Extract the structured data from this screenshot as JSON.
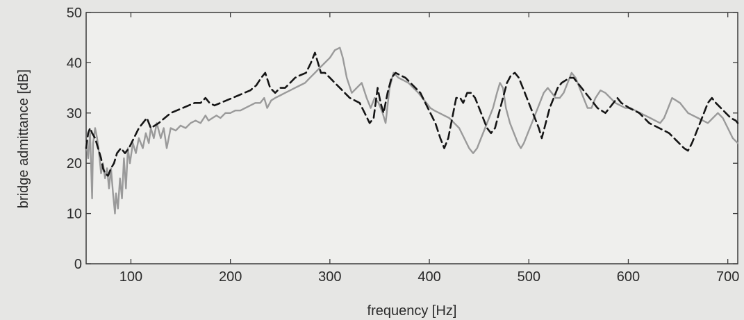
{
  "chart_data": {
    "type": "line",
    "title": "",
    "xlabel": "frequency [Hz]",
    "ylabel": "bridge admittance [dB]",
    "xlim": [
      55,
      710
    ],
    "ylim": [
      0,
      50
    ],
    "xticks": [
      100,
      200,
      300,
      400,
      500,
      600,
      700
    ],
    "yticks": [
      0,
      10,
      20,
      30,
      40,
      50
    ],
    "xtick_labels": [
      "100",
      "200",
      "300",
      "400",
      "500",
      "600",
      "700"
    ],
    "ytick_labels": [
      "0",
      "10",
      "20",
      "30",
      "40",
      "50"
    ],
    "grid": false,
    "legend": "none",
    "series": [
      {
        "style": "solid",
        "color": "#9a9a9a",
        "points": [
          [
            55,
            24
          ],
          [
            57,
            21
          ],
          [
            59,
            26
          ],
          [
            61,
            13
          ],
          [
            62,
            24
          ],
          [
            64,
            27
          ],
          [
            66,
            25
          ],
          [
            68,
            22
          ],
          [
            70,
            18
          ],
          [
            72,
            20
          ],
          [
            74,
            17
          ],
          [
            76,
            19
          ],
          [
            78,
            15
          ],
          [
            80,
            19
          ],
          [
            82,
            14
          ],
          [
            84,
            10
          ],
          [
            85,
            14
          ],
          [
            87,
            11
          ],
          [
            89,
            17
          ],
          [
            91,
            13
          ],
          [
            93,
            21
          ],
          [
            95,
            15
          ],
          [
            97,
            23
          ],
          [
            99,
            20
          ],
          [
            102,
            24
          ],
          [
            105,
            22
          ],
          [
            108,
            25
          ],
          [
            112,
            23
          ],
          [
            115,
            26
          ],
          [
            118,
            24
          ],
          [
            120,
            27
          ],
          [
            123,
            25
          ],
          [
            126,
            28
          ],
          [
            130,
            25
          ],
          [
            133,
            27
          ],
          [
            136,
            23
          ],
          [
            140,
            27
          ],
          [
            145,
            26.5
          ],
          [
            150,
            27.5
          ],
          [
            155,
            27
          ],
          [
            160,
            28
          ],
          [
            165,
            28.5
          ],
          [
            170,
            28
          ],
          [
            175,
            29.5
          ],
          [
            178,
            28.5
          ],
          [
            182,
            29
          ],
          [
            186,
            29.5
          ],
          [
            190,
            29
          ],
          [
            195,
            30
          ],
          [
            200,
            30
          ],
          [
            205,
            30.5
          ],
          [
            210,
            30.5
          ],
          [
            215,
            31
          ],
          [
            220,
            31.5
          ],
          [
            225,
            32
          ],
          [
            230,
            32
          ],
          [
            234,
            33
          ],
          [
            237,
            31
          ],
          [
            241,
            32.5
          ],
          [
            245,
            33
          ],
          [
            250,
            33.5
          ],
          [
            255,
            34
          ],
          [
            260,
            34.5
          ],
          [
            265,
            35
          ],
          [
            270,
            35.5
          ],
          [
            275,
            36
          ],
          [
            280,
            37
          ],
          [
            285,
            38
          ],
          [
            290,
            39
          ],
          [
            295,
            40
          ],
          [
            300,
            41
          ],
          [
            305,
            42.5
          ],
          [
            310,
            43
          ],
          [
            313,
            41
          ],
          [
            317,
            37
          ],
          [
            322,
            34
          ],
          [
            327,
            35
          ],
          [
            332,
            36
          ],
          [
            337,
            33
          ],
          [
            341,
            31
          ],
          [
            345,
            33
          ],
          [
            349,
            32
          ],
          [
            353,
            30
          ],
          [
            356,
            28
          ],
          [
            360,
            35
          ],
          [
            364,
            38
          ],
          [
            369,
            37
          ],
          [
            374,
            36.5
          ],
          [
            379,
            36
          ],
          [
            384,
            35
          ],
          [
            389,
            34
          ],
          [
            393,
            33
          ],
          [
            397,
            32
          ],
          [
            401,
            31
          ],
          [
            405,
            30.5
          ],
          [
            410,
            30
          ],
          [
            415,
            29.5
          ],
          [
            420,
            29
          ],
          [
            425,
            28
          ],
          [
            430,
            27
          ],
          [
            435,
            25
          ],
          [
            440,
            23
          ],
          [
            444,
            22
          ],
          [
            448,
            23
          ],
          [
            452,
            25
          ],
          [
            456,
            27
          ],
          [
            460,
            29
          ],
          [
            464,
            31
          ],
          [
            468,
            34
          ],
          [
            471,
            36
          ],
          [
            474,
            35
          ],
          [
            477,
            31
          ],
          [
            481,
            28
          ],
          [
            485,
            26
          ],
          [
            489,
            24
          ],
          [
            492,
            23
          ],
          [
            495,
            24
          ],
          [
            499,
            26
          ],
          [
            503,
            28
          ],
          [
            507,
            30
          ],
          [
            511,
            32
          ],
          [
            515,
            34
          ],
          [
            519,
            35
          ],
          [
            523,
            34
          ],
          [
            527,
            33
          ],
          [
            531,
            33
          ],
          [
            535,
            34
          ],
          [
            539,
            36
          ],
          [
            543,
            38
          ],
          [
            547,
            37
          ],
          [
            551,
            35
          ],
          [
            555,
            33
          ],
          [
            559,
            31
          ],
          [
            563,
            31
          ],
          [
            567,
            33
          ],
          [
            572,
            34.5
          ],
          [
            577,
            34
          ],
          [
            582,
            33
          ],
          [
            587,
            32
          ],
          [
            592,
            31.5
          ],
          [
            597,
            31
          ],
          [
            602,
            31
          ],
          [
            607,
            30.5
          ],
          [
            612,
            30
          ],
          [
            617,
            29.5
          ],
          [
            622,
            29
          ],
          [
            627,
            28.5
          ],
          [
            632,
            28
          ],
          [
            636,
            29
          ],
          [
            640,
            31
          ],
          [
            644,
            33
          ],
          [
            648,
            32.5
          ],
          [
            652,
            32
          ],
          [
            656,
            31
          ],
          [
            660,
            30
          ],
          [
            665,
            29.5
          ],
          [
            670,
            29
          ],
          [
            675,
            28.5
          ],
          [
            680,
            28
          ],
          [
            685,
            29
          ],
          [
            690,
            30
          ],
          [
            695,
            29
          ],
          [
            700,
            27
          ],
          [
            705,
            25
          ],
          [
            710,
            24
          ]
        ]
      },
      {
        "style": "dashed",
        "color": "#151515",
        "points": [
          [
            55,
            23
          ],
          [
            57,
            26
          ],
          [
            59,
            27
          ],
          [
            61,
            26
          ],
          [
            64,
            25
          ],
          [
            67,
            23
          ],
          [
            70,
            21
          ],
          [
            72,
            19
          ],
          [
            74,
            18
          ],
          [
            77,
            17.5
          ],
          [
            80,
            19
          ],
          [
            83,
            20
          ],
          [
            86,
            22
          ],
          [
            90,
            23
          ],
          [
            94,
            22
          ],
          [
            98,
            23
          ],
          [
            103,
            25
          ],
          [
            108,
            27
          ],
          [
            112,
            28
          ],
          [
            116,
            29
          ],
          [
            120,
            27
          ],
          [
            124,
            27.5
          ],
          [
            128,
            28
          ],
          [
            134,
            29
          ],
          [
            140,
            30
          ],
          [
            146,
            30.5
          ],
          [
            152,
            31
          ],
          [
            158,
            31.5
          ],
          [
            164,
            32
          ],
          [
            170,
            32
          ],
          [
            175,
            33
          ],
          [
            179,
            32
          ],
          [
            184,
            31.5
          ],
          [
            190,
            32
          ],
          [
            196,
            32.5
          ],
          [
            202,
            33
          ],
          [
            208,
            33.5
          ],
          [
            214,
            34
          ],
          [
            220,
            34.5
          ],
          [
            226,
            35.5
          ],
          [
            231,
            37
          ],
          [
            235,
            38
          ],
          [
            240,
            35
          ],
          [
            245,
            34
          ],
          [
            250,
            35
          ],
          [
            255,
            35
          ],
          [
            260,
            36
          ],
          [
            265,
            37
          ],
          [
            270,
            37.5
          ],
          [
            276,
            38
          ],
          [
            281,
            40
          ],
          [
            285,
            42
          ],
          [
            288,
            40
          ],
          [
            291,
            38
          ],
          [
            295,
            38
          ],
          [
            300,
            37
          ],
          [
            305,
            36
          ],
          [
            310,
            35
          ],
          [
            315,
            34
          ],
          [
            320,
            33
          ],
          [
            325,
            32.5
          ],
          [
            330,
            32
          ],
          [
            335,
            30
          ],
          [
            340,
            28
          ],
          [
            344,
            29
          ],
          [
            348,
            35
          ],
          [
            351,
            32
          ],
          [
            354,
            30
          ],
          [
            358,
            34
          ],
          [
            362,
            37
          ],
          [
            366,
            38
          ],
          [
            371,
            37.5
          ],
          [
            376,
            37
          ],
          [
            381,
            36
          ],
          [
            386,
            35
          ],
          [
            391,
            34
          ],
          [
            396,
            32
          ],
          [
            401,
            30
          ],
          [
            406,
            28
          ],
          [
            411,
            25
          ],
          [
            415,
            23
          ],
          [
            419,
            25
          ],
          [
            423,
            29
          ],
          [
            427,
            33
          ],
          [
            431,
            33
          ],
          [
            434,
            32
          ],
          [
            438,
            34
          ],
          [
            442,
            34
          ],
          [
            446,
            33
          ],
          [
            450,
            31
          ],
          [
            454,
            29
          ],
          [
            458,
            27
          ],
          [
            462,
            26
          ],
          [
            466,
            27
          ],
          [
            470,
            30
          ],
          [
            474,
            33
          ],
          [
            478,
            36
          ],
          [
            482,
            37.5
          ],
          [
            486,
            38
          ],
          [
            490,
            37
          ],
          [
            494,
            35
          ],
          [
            498,
            33
          ],
          [
            502,
            31
          ],
          [
            506,
            29
          ],
          [
            510,
            27
          ],
          [
            513,
            25
          ],
          [
            517,
            28
          ],
          [
            521,
            31
          ],
          [
            525,
            33
          ],
          [
            529,
            35
          ],
          [
            533,
            36
          ],
          [
            537,
            36.5
          ],
          [
            541,
            37
          ],
          [
            545,
            37
          ],
          [
            549,
            36
          ],
          [
            553,
            35
          ],
          [
            557,
            34
          ],
          [
            561,
            33
          ],
          [
            565,
            32
          ],
          [
            569,
            31
          ],
          [
            573,
            30.5
          ],
          [
            577,
            30
          ],
          [
            581,
            31
          ],
          [
            585,
            32
          ],
          [
            589,
            33
          ],
          [
            593,
            32
          ],
          [
            597,
            31.5
          ],
          [
            601,
            31
          ],
          [
            606,
            30.5
          ],
          [
            611,
            30
          ],
          [
            616,
            29
          ],
          [
            621,
            28
          ],
          [
            626,
            27.5
          ],
          [
            631,
            27
          ],
          [
            636,
            26.5
          ],
          [
            641,
            26
          ],
          [
            646,
            25
          ],
          [
            651,
            24
          ],
          [
            656,
            23
          ],
          [
            660,
            22.5
          ],
          [
            664,
            24
          ],
          [
            668,
            26
          ],
          [
            672,
            28
          ],
          [
            676,
            30
          ],
          [
            680,
            32
          ],
          [
            684,
            33
          ],
          [
            688,
            32
          ],
          [
            693,
            31
          ],
          [
            698,
            30
          ],
          [
            703,
            29
          ],
          [
            708,
            28.5
          ],
          [
            710,
            28
          ]
        ]
      }
    ]
  }
}
